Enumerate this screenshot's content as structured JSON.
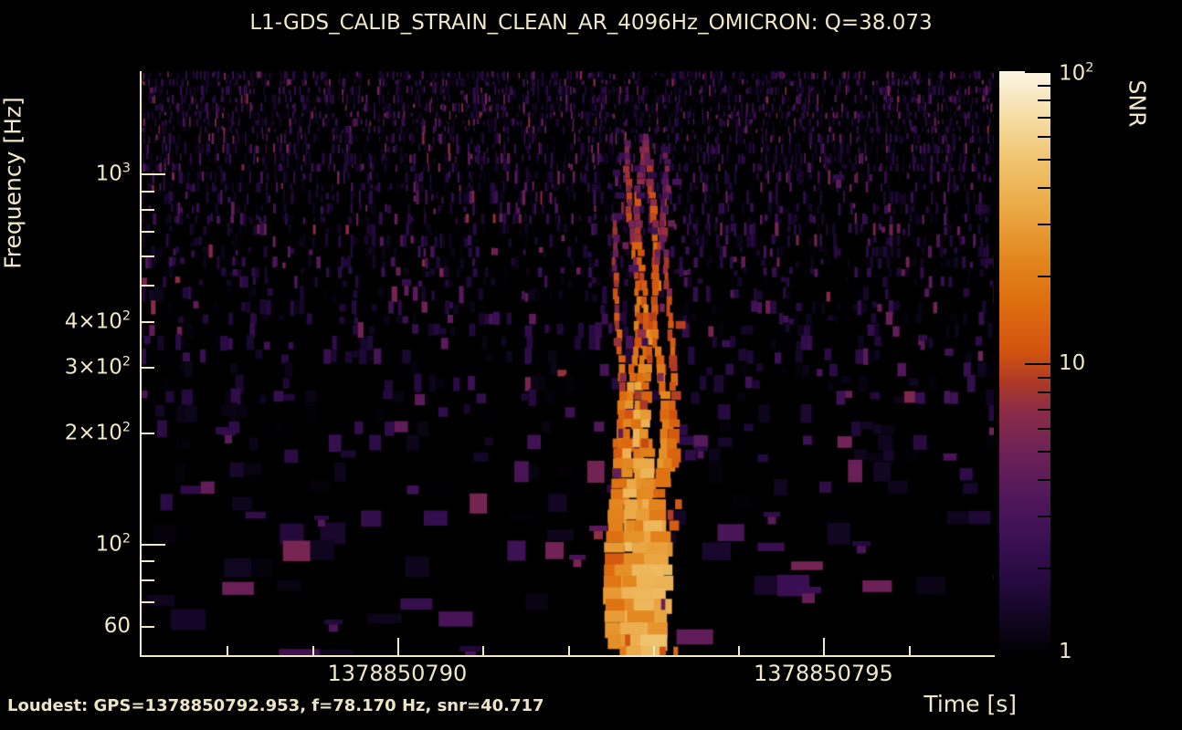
{
  "title": "L1-GDS_CALIB_STRAIN_CLEAN_AR_4096Hz_OMICRON: Q=38.073",
  "footer": {
    "loudest_label": "Loudest: GPS=1378850792.953, f=78.170 Hz, snr=40.717"
  },
  "colors": {
    "background": "#000000",
    "text": "#f1e8c8",
    "spine": "#f2e9c7",
    "colorbar_tick": "#000000"
  },
  "chart_data": {
    "type": "heatmap",
    "subtype": "omega-scan-spectrogram",
    "title": "L1-GDS_CALIB_STRAIN_CLEAN_AR_4096Hz_OMICRON: Q=38.073",
    "xlabel": "Time [s]",
    "ylabel": "Frequency [Hz]",
    "colorbar_label": "SNR",
    "q_value": 38.073,
    "x_range_gps": [
      1378850787.0,
      1378850797.0
    ],
    "y_range_hz": [
      50,
      1890
    ],
    "x_scale": "linear",
    "y_scale": "log",
    "snr_range": [
      1,
      100
    ],
    "snr_scale": "log",
    "grid": false,
    "x_major_ticks": [
      {
        "value": 1378850790,
        "label": "1378850790"
      },
      {
        "value": 1378850795,
        "label": "1378850795"
      }
    ],
    "x_minor_ticks": [
      1378850788,
      1378850789,
      1378850791,
      1378850792,
      1378850793,
      1378850794,
      1378850796
    ],
    "y_labeled_ticks": [
      {
        "value": 1000,
        "base": "10",
        "exp": "3"
      },
      {
        "value": 400,
        "base": "4×10",
        "exp": "2"
      },
      {
        "value": 300,
        "base": "3×10",
        "exp": "2"
      },
      {
        "value": 200,
        "base": "2×10",
        "exp": "2"
      },
      {
        "value": 100,
        "base": "10",
        "exp": "2"
      },
      {
        "value": 60,
        "base": "60",
        "exp": ""
      }
    ],
    "y_minor_ticks": [
      60,
      70,
      80,
      90,
      200,
      300,
      400,
      500,
      600,
      700,
      800,
      900
    ],
    "y_major_ticks": [
      100,
      1000
    ],
    "colorbar_labeled_ticks": [
      {
        "value": 100,
        "base": "10",
        "exp": "2"
      },
      {
        "value": 10,
        "base": "10",
        "exp": ""
      },
      {
        "value": 1,
        "base": "1",
        "exp": ""
      }
    ],
    "colorbar_minor_ticks": [
      2,
      3,
      4,
      5,
      6,
      7,
      8,
      9,
      20,
      30,
      40,
      50,
      60,
      70,
      80,
      90
    ],
    "colormap_stops": [
      [
        0.0,
        "#000002"
      ],
      [
        0.05,
        "#0d051a"
      ],
      [
        0.12,
        "#23093d"
      ],
      [
        0.2,
        "#3b1054"
      ],
      [
        0.28,
        "#54185b"
      ],
      [
        0.35,
        "#6e2256"
      ],
      [
        0.42,
        "#8c2c46"
      ],
      [
        0.47,
        "#b03b24"
      ],
      [
        0.52,
        "#d25310"
      ],
      [
        0.6,
        "#dd6c0f"
      ],
      [
        0.68,
        "#e3871f"
      ],
      [
        0.76,
        "#eaa743"
      ],
      [
        0.84,
        "#efc16a"
      ],
      [
        0.92,
        "#f5dca3"
      ],
      [
        1.0,
        "#fbf6e4"
      ]
    ],
    "loudest": {
      "gps": 1378850792.953,
      "frequency_hz": 78.17,
      "snr": 40.717
    },
    "burst": {
      "center_gps": 1378850792.9,
      "peak_frequency_hz": 78,
      "frequency_extent_hz": [
        50,
        1300
      ],
      "peak_snr": 41,
      "description": "Vertical cluster of orange filaments rising from bright yellow core near 78 Hz up to ~1.3 kHz over dark purple background noise"
    }
  }
}
